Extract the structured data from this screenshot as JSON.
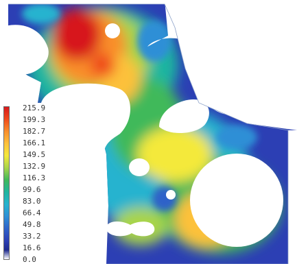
{
  "legend": {
    "labels": [
      "215.9",
      "199.3",
      "182.7",
      "166.1",
      "149.5",
      "132.9",
      "116.3",
      "99.6",
      "83.0",
      "66.4",
      "49.8",
      "33.2",
      "16.6",
      "0.0"
    ]
  },
  "colors": {
    "scale": [
      "#d7191c",
      "#ef4a1c",
      "#f98e2c",
      "#fdc13b",
      "#f4e93b",
      "#a8d44a",
      "#3fb95a",
      "#1fb5a0",
      "#26b3cf",
      "#2e8fd6",
      "#2f62c9",
      "#2c3fb4",
      "#1f2b8e",
      "#ffffff"
    ],
    "background": "#ffffff"
  }
}
